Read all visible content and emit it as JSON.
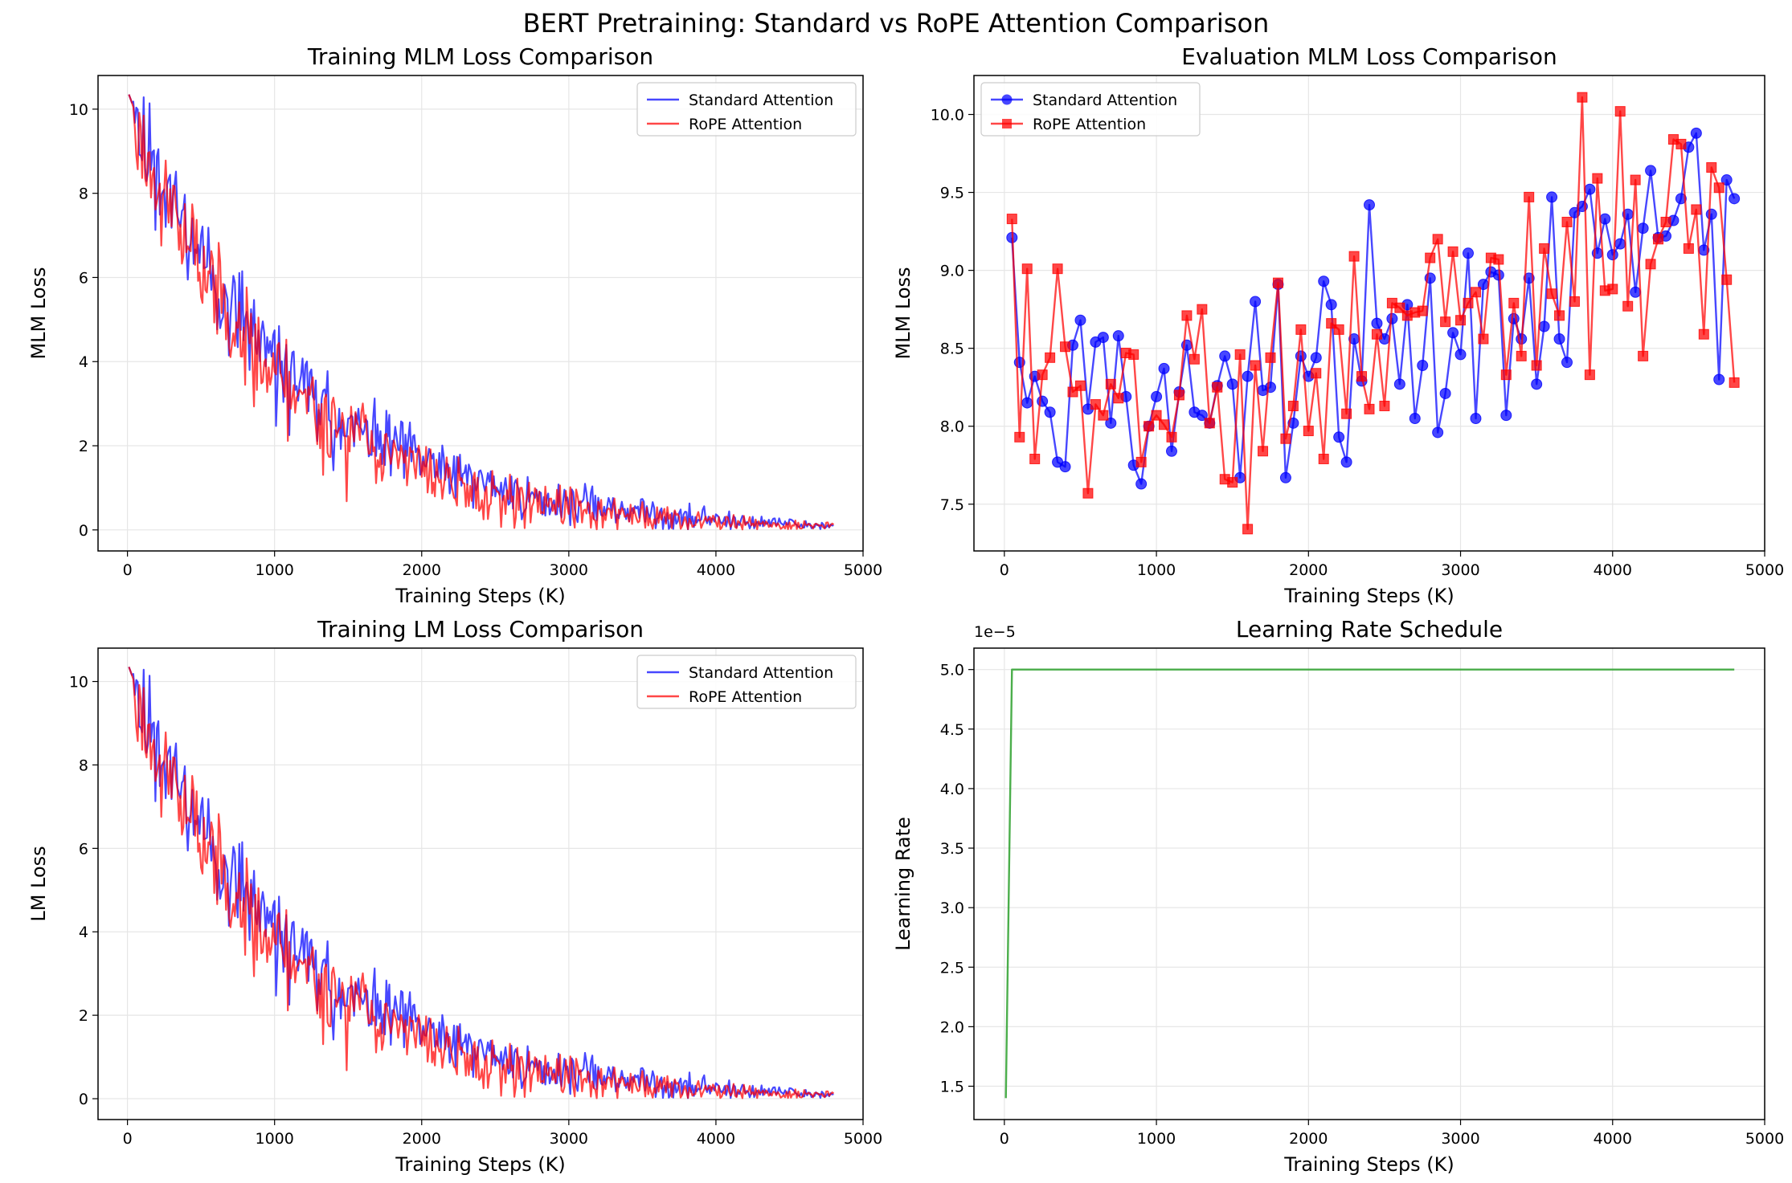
{
  "suptitle": "BERT Pretraining: Standard vs RoPE Attention Comparison",
  "colors": {
    "standard": "#0000ff",
    "rope": "#ff0000",
    "lr": "#2ca02c",
    "grid": "#e6e6e6"
  },
  "chart_data": [
    {
      "id": "train_mlm",
      "type": "line",
      "title": "Training MLM Loss Comparison",
      "xlabel": "Training Steps (K)",
      "ylabel": "MLM Loss",
      "xlim": [
        -200,
        5000
      ],
      "ylim": [
        -0.5,
        10.8
      ],
      "xticks": [
        0,
        1000,
        2000,
        3000,
        4000,
        5000
      ],
      "yticks": [
        0,
        2,
        4,
        6,
        8,
        10
      ],
      "grid": true,
      "legend": "top-right",
      "curve": {
        "start_x": 10,
        "end_x": 4800,
        "start_y": 10.35,
        "tau": 1050,
        "noise_start": 0.9,
        "noise_end": 0.05,
        "step": 10
      },
      "series": [
        {
          "name": "Standard Attention",
          "color": "#0000ff",
          "seed": 11,
          "offset": 0.06
        },
        {
          "name": "RoPE Attention",
          "color": "#ff0000",
          "seed": 23,
          "offset": -0.1
        }
      ]
    },
    {
      "id": "eval_mlm",
      "type": "line",
      "title": "Evaluation MLM Loss Comparison",
      "xlabel": "Training Steps (K)",
      "ylabel": "MLM Loss",
      "xlim": [
        -200,
        5000
      ],
      "ylim": [
        7.2,
        10.25
      ],
      "xticks": [
        0,
        1000,
        2000,
        3000,
        4000,
        5000
      ],
      "yticks": [
        7.5,
        8.0,
        8.5,
        9.0,
        9.5,
        10.0
      ],
      "ytick_labels": [
        "7.5",
        "8.0",
        "8.5",
        "9.0",
        "9.5",
        "10.0"
      ],
      "grid": true,
      "legend": "top-left",
      "x": [
        50,
        100,
        150,
        200,
        250,
        300,
        350,
        400,
        450,
        500,
        550,
        600,
        650,
        700,
        750,
        800,
        850,
        900,
        950,
        1000,
        1050,
        1100,
        1150,
        1200,
        1250,
        1300,
        1350,
        1400,
        1450,
        1500,
        1550,
        1600,
        1650,
        1700,
        1750,
        1800,
        1850,
        1900,
        1950,
        2000,
        2050,
        2100,
        2150,
        2200,
        2250,
        2300,
        2350,
        2400,
        2450,
        2500,
        2550,
        2600,
        2650,
        2700,
        2750,
        2800,
        2850,
        2900,
        2950,
        3000,
        3050,
        3100,
        3150,
        3200,
        3250,
        3300,
        3350,
        3400,
        3450,
        3500,
        3550,
        3600,
        3650,
        3700,
        3750,
        3800,
        3850,
        3900,
        3950,
        4000,
        4050,
        4100,
        4150,
        4200,
        4250,
        4300,
        4350,
        4400,
        4450,
        4500,
        4550,
        4600,
        4650,
        4700,
        4750,
        4800
      ],
      "series": [
        {
          "name": "Standard Attention",
          "color": "#0000ff",
          "marker": "circle",
          "values": [
            9.21,
            8.41,
            8.15,
            8.32,
            8.16,
            8.09,
            7.77,
            7.74,
            8.52,
            8.68,
            8.11,
            8.54,
            8.57,
            8.02,
            8.58,
            8.19,
            7.75,
            7.63,
            8.0,
            8.19,
            8.37,
            7.84,
            8.22,
            8.52,
            8.09,
            8.07,
            8.02,
            8.26,
            8.45,
            8.27,
            7.67,
            8.32,
            8.8,
            8.23,
            8.25,
            8.91,
            7.67,
            8.02,
            8.45,
            8.32,
            8.44,
            8.93,
            8.78,
            7.93,
            7.77,
            8.56,
            8.29,
            9.42,
            8.66,
            8.56,
            8.69,
            8.27,
            8.78,
            8.05,
            8.39,
            8.95,
            7.96,
            8.21,
            8.6,
            8.46,
            9.11,
            8.05,
            8.91,
            8.99,
            8.97,
            8.07,
            8.69,
            8.56,
            8.95,
            8.27,
            8.64,
            9.47,
            8.56,
            8.41,
            9.37,
            9.41,
            9.52,
            9.11,
            9.33,
            9.1,
            9.17,
            9.36,
            8.86,
            9.27,
            9.64,
            9.21,
            9.22,
            9.32,
            9.46,
            9.79,
            9.88,
            9.13,
            9.36,
            8.3,
            9.58,
            9.46
          ]
        },
        {
          "name": "RoPE Attention",
          "color": "#ff0000",
          "marker": "square",
          "values": [
            9.33,
            7.93,
            9.01,
            7.79,
            8.33,
            8.44,
            9.01,
            8.51,
            8.22,
            8.26,
            7.57,
            8.14,
            8.07,
            8.27,
            8.18,
            8.47,
            8.46,
            7.77,
            8.0,
            8.07,
            8.01,
            7.93,
            8.2,
            8.71,
            8.43,
            8.75,
            8.02,
            8.25,
            7.66,
            7.64,
            8.46,
            7.34,
            8.39,
            7.84,
            8.44,
            8.92,
            7.92,
            8.13,
            8.62,
            7.97,
            8.34,
            7.79,
            8.66,
            8.62,
            8.08,
            9.09,
            8.32,
            8.11,
            8.59,
            8.13,
            8.79,
            8.76,
            8.71,
            8.73,
            8.74,
            9.08,
            9.2,
            8.67,
            9.12,
            8.68,
            8.79,
            8.86,
            8.56,
            9.08,
            9.07,
            8.33,
            8.79,
            8.45,
            9.47,
            8.39,
            9.14,
            8.85,
            8.71,
            9.31,
            8.8,
            10.11,
            8.33,
            9.59,
            8.87,
            8.88,
            10.02,
            8.77,
            9.58,
            8.45,
            9.04,
            9.2,
            9.31,
            9.84,
            9.81,
            9.14,
            9.39,
            8.59,
            9.66,
            9.53,
            8.94,
            8.28
          ]
        }
      ]
    },
    {
      "id": "train_lm",
      "type": "line",
      "title": "Training LM Loss Comparison",
      "xlabel": "Training Steps (K)",
      "ylabel": "LM Loss",
      "xlim": [
        -200,
        5000
      ],
      "ylim": [
        -0.5,
        10.8
      ],
      "xticks": [
        0,
        1000,
        2000,
        3000,
        4000,
        5000
      ],
      "yticks": [
        0,
        2,
        4,
        6,
        8,
        10
      ],
      "grid": true,
      "legend": "top-right",
      "curve": {
        "start_x": 10,
        "end_x": 4800,
        "start_y": 10.35,
        "tau": 1050,
        "noise_start": 0.9,
        "noise_end": 0.05,
        "step": 10
      },
      "series": [
        {
          "name": "Standard Attention",
          "color": "#0000ff",
          "seed": 11,
          "offset": 0.06
        },
        {
          "name": "RoPE Attention",
          "color": "#ff0000",
          "seed": 23,
          "offset": -0.1
        }
      ]
    },
    {
      "id": "lr",
      "type": "line",
      "title": "Learning Rate Schedule",
      "xlabel": "Training Steps (K)",
      "ylabel": "Learning Rate",
      "offset_label": "1e−5",
      "xlim": [
        -200,
        5000
      ],
      "ylim": [
        1.22,
        5.18
      ],
      "xticks": [
        0,
        1000,
        2000,
        3000,
        4000,
        5000
      ],
      "yticks": [
        1.5,
        2.0,
        2.5,
        3.0,
        3.5,
        4.0,
        4.5,
        5.0
      ],
      "ytick_labels": [
        "1.5",
        "2.0",
        "2.5",
        "3.0",
        "3.5",
        "4.0",
        "4.5",
        "5.0"
      ],
      "grid": true,
      "series": [
        {
          "name": "Learning Rate",
          "color": "#2ca02c",
          "x": [
            10,
            50,
            4800
          ],
          "values": [
            1.4,
            5.0,
            5.0
          ]
        }
      ]
    }
  ]
}
